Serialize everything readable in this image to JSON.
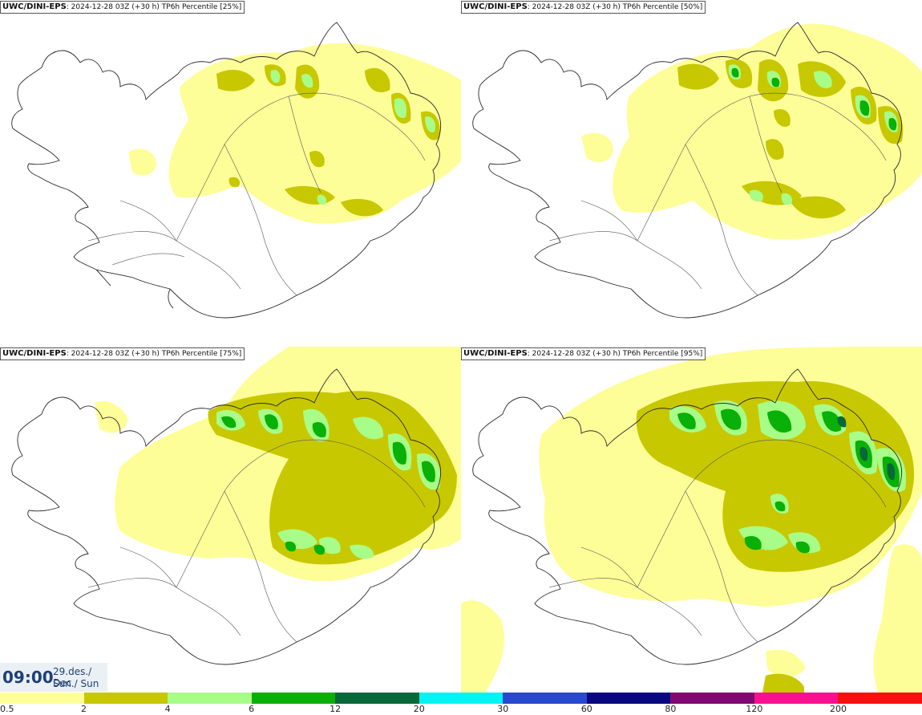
{
  "panels": [
    {
      "title_model": "UWC/DINI-EPS",
      "title_rest": ": 2024-12-28 03Z (+30 h)",
      "title_field": "TP6h Percentile [25%]"
    },
    {
      "title_model": "UWC/DINI-EPS",
      "title_rest": ": 2024-12-28 03Z (+30 h)",
      "title_field": "TP6h Percentile [50%]"
    },
    {
      "title_model": "UWC/DINI-EPS",
      "title_rest": ": 2024-12-28 03Z (+30 h)",
      "title_field": "TP6h Percentile [75%]"
    },
    {
      "title_model": "UWC/DINI-EPS",
      "title_rest": ": 2024-12-28 03Z (+30 h)",
      "title_field": "TP6h Percentile [95%]"
    }
  ],
  "valid_time": {
    "hour": "09:00",
    "date_line": "29.des./ Dec",
    "day_line": "Sun./ Sun"
  },
  "legend": {
    "colors": [
      "#fefe98",
      "#c8c800",
      "#a8fc88",
      "#08b008",
      "#086838",
      "#00f4f4",
      "#2848d0",
      "#0a0880",
      "#800870",
      "#f81090",
      "#f81010"
    ],
    "labels": [
      "0.5",
      "2",
      "4",
      "6",
      "12",
      "20",
      "30",
      "60",
      "80",
      "120",
      "200"
    ]
  }
}
